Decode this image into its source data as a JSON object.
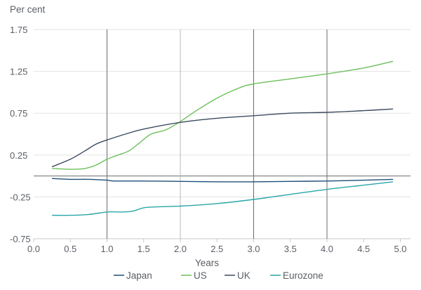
{
  "chart_data": {
    "type": "line",
    "ylabel": "Per cent",
    "xlabel": "Years",
    "xlim": [
      0.0,
      5.0
    ],
    "ylim": [
      -0.75,
      1.75
    ],
    "xticks": [
      "0.0",
      "0.5",
      "1.0",
      "1.5",
      "2.0",
      "2.5",
      "3.0",
      "3.5",
      "4.0",
      "4.5",
      "5.0"
    ],
    "yticks": [
      "-0.75",
      "-0.25",
      "0.25",
      "0.75",
      "1.25",
      "1.75"
    ],
    "ytick_values": [
      -0.75,
      -0.25,
      0.25,
      0.75,
      1.25,
      1.75
    ],
    "xtick_values": [
      0.0,
      0.5,
      1.0,
      1.5,
      2.0,
      2.5,
      3.0,
      3.5,
      4.0,
      4.5,
      5.0
    ],
    "vlines": [
      1.0,
      2.0,
      3.0,
      4.0
    ],
    "zero_line": 0.0,
    "grid": "horizontal",
    "legend_position": "bottom",
    "series": [
      {
        "name": "Japan",
        "color": "#1f4e79",
        "x": [
          0.25,
          0.5,
          0.75,
          1.0,
          1.1,
          1.5,
          2.0,
          2.5,
          3.0,
          3.5,
          4.0,
          4.5,
          4.9
        ],
        "y": [
          -0.03,
          -0.04,
          -0.04,
          -0.05,
          -0.06,
          -0.06,
          -0.065,
          -0.07,
          -0.07,
          -0.065,
          -0.06,
          -0.05,
          -0.04
        ]
      },
      {
        "name": "US",
        "color": "#6cbf5a",
        "x": [
          0.25,
          0.5,
          0.7,
          0.85,
          1.0,
          1.15,
          1.3,
          1.45,
          1.6,
          1.8,
          2.0,
          2.2,
          2.5,
          2.8,
          3.0,
          3.5,
          4.0,
          4.5,
          4.9
        ],
        "y": [
          0.09,
          0.08,
          0.09,
          0.13,
          0.2,
          0.25,
          0.3,
          0.4,
          0.5,
          0.55,
          0.65,
          0.77,
          0.93,
          1.05,
          1.1,
          1.16,
          1.22,
          1.29,
          1.37
        ]
      },
      {
        "name": "UK",
        "color": "#3b4b5e",
        "x": [
          0.25,
          0.5,
          0.7,
          0.85,
          1.0,
          1.25,
          1.5,
          2.0,
          2.5,
          3.0,
          3.5,
          4.0,
          4.5,
          4.9
        ],
        "y": [
          0.11,
          0.2,
          0.3,
          0.38,
          0.43,
          0.5,
          0.56,
          0.64,
          0.69,
          0.72,
          0.75,
          0.76,
          0.78,
          0.8
        ]
      },
      {
        "name": "Eurozone",
        "color": "#2aa6a8",
        "x": [
          0.25,
          0.5,
          0.75,
          1.0,
          1.2,
          1.35,
          1.5,
          1.65,
          2.0,
          2.5,
          3.0,
          3.5,
          4.0,
          4.5,
          4.9
        ],
        "y": [
          -0.47,
          -0.47,
          -0.46,
          -0.43,
          -0.43,
          -0.42,
          -0.38,
          -0.37,
          -0.36,
          -0.33,
          -0.28,
          -0.22,
          -0.16,
          -0.11,
          -0.07
        ]
      }
    ]
  }
}
